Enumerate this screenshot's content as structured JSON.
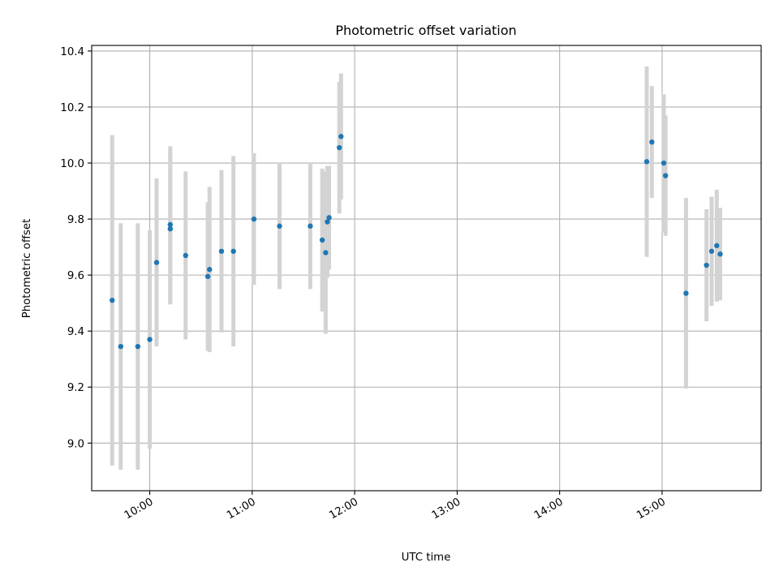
{
  "chart_data": {
    "type": "scatter",
    "title": "Photometric offset variation",
    "xlabel": "UTC time",
    "ylabel": "Photometric offset",
    "xlim": [
      "09:26",
      "15:58"
    ],
    "ylim": [
      8.83,
      10.42
    ],
    "x_ticks": [
      "10:00",
      "11:00",
      "12:00",
      "13:00",
      "14:00",
      "15:00"
    ],
    "y_ticks": [
      "9.0",
      "9.2",
      "9.4",
      "9.6",
      "9.8",
      "10.0",
      "10.2",
      "10.4"
    ],
    "grid": true,
    "point_color": "#1f77b4",
    "errorbar_color": "#d3d3d3",
    "series": [
      {
        "points": [
          {
            "x": "09:38",
            "y": 9.51,
            "err": 0.59
          },
          {
            "x": "09:43",
            "y": 9.345,
            "err": 0.44
          },
          {
            "x": "09:53",
            "y": 9.345,
            "err": 0.44
          },
          {
            "x": "10:00",
            "y": 9.37,
            "err": 0.39
          },
          {
            "x": "10:04",
            "y": 9.645,
            "err": 0.3
          },
          {
            "x": "10:12",
            "y": 9.78,
            "err": 0.28
          },
          {
            "x": "10:12",
            "y": 9.765,
            "err": 0.27
          },
          {
            "x": "10:21",
            "y": 9.67,
            "err": 0.3
          },
          {
            "x": "10:34",
            "y": 9.595,
            "err": 0.265
          },
          {
            "x": "10:35",
            "y": 9.62,
            "err": 0.295
          },
          {
            "x": "10:42",
            "y": 9.685,
            "err": 0.29
          },
          {
            "x": "10:49",
            "y": 9.685,
            "err": 0.34
          },
          {
            "x": "11:01",
            "y": 9.8,
            "err": 0.235
          },
          {
            "x": "11:16",
            "y": 9.775,
            "err": 0.225
          },
          {
            "x": "11:34",
            "y": 9.775,
            "err": 0.225
          },
          {
            "x": "11:41",
            "y": 9.725,
            "err": 0.255
          },
          {
            "x": "11:43",
            "y": 9.68,
            "err": 0.29
          },
          {
            "x": "11:44",
            "y": 9.79,
            "err": 0.2
          },
          {
            "x": "11:45",
            "y": 9.805,
            "err": 0.185
          },
          {
            "x": "11:51",
            "y": 10.055,
            "err": 0.235
          },
          {
            "x": "11:52",
            "y": 10.095,
            "err": 0.225
          },
          {
            "x": "14:51",
            "y": 10.005,
            "err": 0.34
          },
          {
            "x": "14:54",
            "y": 10.075,
            "err": 0.2
          },
          {
            "x": "15:01",
            "y": 10.0,
            "err": 0.245
          },
          {
            "x": "15:02",
            "y": 9.955,
            "err": 0.215
          },
          {
            "x": "15:14",
            "y": 9.535,
            "err": 0.34
          },
          {
            "x": "15:26",
            "y": 9.635,
            "err": 0.2
          },
          {
            "x": "15:29",
            "y": 9.685,
            "err": 0.195
          },
          {
            "x": "15:32",
            "y": 9.705,
            "err": 0.2
          },
          {
            "x": "15:34",
            "y": 9.675,
            "err": 0.165
          }
        ]
      }
    ]
  }
}
